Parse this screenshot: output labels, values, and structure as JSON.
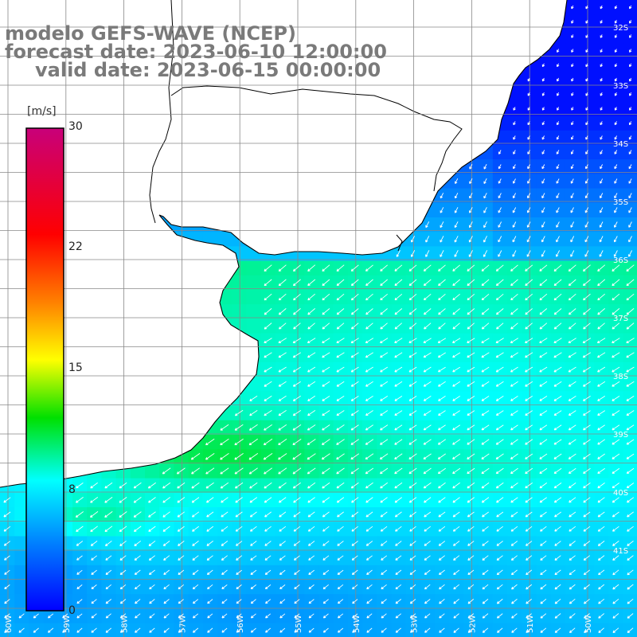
{
  "title": {
    "line1": "modelo GEFS-WAVE (NCEP)",
    "line2": "forecast date: 2023-06-10 12:00:00",
    "line3": "valid date: 2023-06-15 00:00:00"
  },
  "colorbar": {
    "unit": "[m/s]",
    "ticks": [
      "30",
      "22",
      "15",
      "8",
      "0"
    ],
    "min": 0,
    "max": 30
  },
  "latitude_labels": [
    "32S",
    "33S",
    "34S",
    "35S",
    "36S",
    "37S",
    "38S",
    "39S",
    "40S",
    "41S"
  ],
  "longitude_labels": [
    "60W",
    "59W",
    "58W",
    "57W",
    "56W",
    "55W",
    "54W",
    "53W",
    "52W",
    "51W",
    "50W"
  ],
  "colors": {
    "land": "#ffffff",
    "coastline": "#000000",
    "grid": "#888888",
    "title_text": "#7a7a7a",
    "arrow": "#ffffff"
  }
}
